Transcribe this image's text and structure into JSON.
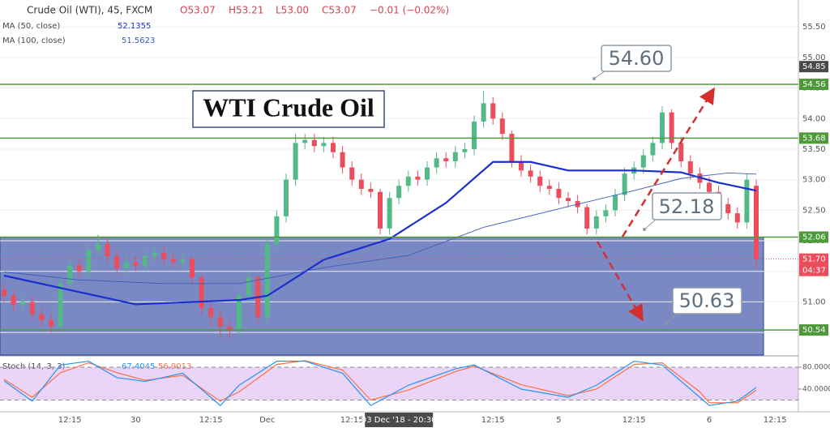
{
  "chart_data": {
    "type": "candlestick",
    "title": "Crude Oil (WTI), 45, FXCM",
    "ohlc_legend": [
      "O53.07",
      "H53.21",
      "L53.00",
      "C53.07",
      "−0.01 (−0.02%)"
    ],
    "categories": [
      null,
      null,
      null,
      null,
      null,
      null,
      null,
      "12:15",
      null,
      null,
      null,
      null,
      null,
      null,
      "30",
      null,
      null,
      null,
      null,
      null,
      null,
      null,
      "12:15",
      null,
      null,
      null,
      null,
      null,
      "Dec",
      null,
      null,
      null,
      null,
      null,
      null,
      null,
      null,
      "12:15",
      null,
      null,
      null,
      null,
      "03 Dec '18 - 20:30",
      null,
      null,
      null,
      null,
      null,
      null,
      null,
      null,
      null,
      "12:15",
      null,
      null,
      null,
      null,
      null,
      null,
      "5",
      null,
      null,
      null,
      null,
      null,
      null,
      null,
      "12:15",
      null,
      null,
      null,
      null,
      null,
      null,
      null,
      "6",
      null,
      null,
      null,
      null,
      null,
      null,
      "12:15",
      null
    ],
    "open": [
      51.2,
      51.1,
      50.95,
      51.0,
      50.8,
      50.7,
      50.6,
      51.3,
      51.6,
      51.5,
      51.85,
      51.95,
      51.75,
      51.55,
      51.65,
      51.6,
      51.75,
      51.8,
      51.7,
      51.65,
      51.7,
      51.4,
      50.9,
      50.75,
      50.6,
      50.55,
      51.1,
      51.4,
      50.75,
      51.95,
      52.4,
      53.0,
      53.6,
      53.65,
      53.55,
      53.6,
      53.45,
      53.2,
      53.0,
      52.85,
      52.8,
      52.2,
      52.7,
      52.9,
      53.05,
      53.0,
      53.2,
      53.35,
      53.3,
      53.45,
      53.5,
      53.95,
      54.25,
      54.0,
      53.75,
      53.3,
      53.15,
      53.05,
      52.9,
      52.85,
      52.7,
      52.65,
      52.55,
      52.2,
      52.4,
      52.5,
      52.75,
      53.1,
      53.2,
      53.4,
      53.6,
      54.1,
      53.6,
      53.3,
      53.1,
      52.95,
      52.8,
      52.6,
      52.45,
      52.3,
      52.9,
      null,
      null,
      null
    ],
    "high": [
      51.3,
      51.2,
      51.1,
      51.1,
      50.9,
      50.8,
      51.4,
      51.7,
      51.7,
      51.95,
      52.1,
      52.05,
      51.85,
      51.75,
      51.75,
      51.85,
      51.9,
      51.9,
      51.8,
      51.8,
      51.75,
      51.45,
      51.0,
      50.85,
      50.7,
      51.2,
      51.5,
      51.45,
      52.05,
      52.5,
      53.1,
      53.75,
      53.75,
      53.75,
      53.7,
      53.7,
      53.55,
      53.3,
      53.1,
      52.95,
      52.85,
      52.8,
      53.0,
      53.15,
      53.15,
      53.3,
      53.45,
      53.45,
      53.55,
      53.6,
      54.05,
      54.45,
      54.35,
      54.1,
      53.8,
      53.4,
      53.25,
      53.15,
      53.0,
      52.95,
      52.8,
      52.75,
      52.6,
      52.5,
      52.6,
      52.85,
      53.2,
      53.3,
      53.5,
      53.7,
      54.2,
      54.15,
      53.7,
      53.4,
      53.2,
      53.05,
      52.9,
      52.7,
      52.55,
      53.1,
      53.0,
      null,
      null,
      null
    ],
    "low": [
      51.0,
      50.85,
      50.85,
      50.7,
      50.6,
      50.5,
      50.5,
      51.2,
      51.4,
      51.4,
      51.75,
      51.65,
      51.45,
      51.45,
      51.5,
      51.5,
      51.65,
      51.6,
      51.55,
      51.55,
      51.3,
      50.8,
      50.6,
      50.45,
      50.4,
      50.45,
      51.0,
      50.65,
      50.65,
      51.85,
      52.3,
      52.9,
      53.5,
      53.45,
      53.45,
      53.35,
      53.1,
      52.9,
      52.75,
      52.7,
      52.1,
      52.1,
      52.6,
      52.8,
      52.9,
      52.9,
      53.1,
      53.2,
      53.2,
      53.35,
      53.4,
      53.85,
      53.9,
      53.65,
      53.2,
      53.05,
      52.95,
      52.8,
      52.75,
      52.6,
      52.55,
      52.45,
      52.1,
      52.1,
      52.3,
      52.4,
      52.65,
      53.0,
      53.1,
      53.3,
      53.5,
      53.5,
      53.2,
      53.0,
      52.85,
      52.7,
      52.5,
      52.35,
      52.2,
      52.2,
      51.55,
      null,
      null,
      null
    ],
    "close": [
      51.1,
      50.95,
      51.0,
      50.8,
      50.7,
      50.6,
      51.3,
      51.6,
      51.5,
      51.85,
      51.95,
      51.75,
      51.55,
      51.65,
      51.6,
      51.75,
      51.8,
      51.7,
      51.65,
      51.7,
      51.4,
      50.9,
      50.75,
      50.6,
      50.55,
      51.1,
      51.4,
      50.75,
      51.95,
      52.4,
      53.0,
      53.6,
      53.65,
      53.55,
      53.6,
      53.45,
      53.2,
      53.0,
      52.85,
      52.8,
      52.2,
      52.7,
      52.9,
      53.05,
      53.0,
      53.2,
      53.35,
      53.3,
      53.45,
      53.5,
      53.95,
      54.25,
      54.0,
      53.75,
      53.3,
      53.15,
      53.05,
      52.9,
      52.85,
      52.7,
      52.65,
      52.55,
      52.2,
      52.4,
      52.5,
      52.75,
      53.1,
      53.2,
      53.4,
      53.6,
      54.1,
      53.6,
      53.3,
      53.1,
      52.95,
      52.8,
      52.6,
      52.45,
      52.3,
      53.0,
      51.7,
      null,
      null,
      null
    ],
    "up_color": "#53b987",
    "down_color": "#eb4d5c",
    "ylim": [
      50.13,
      55.94
    ],
    "yticks": [
      {
        "value": 50.5,
        "label": "50.50"
      },
      {
        "value": 51,
        "label": "51.00"
      },
      {
        "value": 51.5,
        "label": "51.50"
      },
      {
        "value": 52,
        "label": "52.00"
      },
      {
        "value": 52.5,
        "label": "52.50"
      },
      {
        "value": 53,
        "label": "53.00"
      },
      {
        "value": 53.5,
        "label": "53.50"
      },
      {
        "value": 54,
        "label": "54.00"
      },
      {
        "value": 54.5,
        "label": "54.50"
      },
      {
        "value": 55,
        "label": "55.00"
      },
      {
        "value": 55.5,
        "label": "55.50"
      }
    ],
    "grid": true,
    "series": [
      {
        "name": "MA (50, close)",
        "value_label": "52.1355",
        "color": "#1a2fd0",
        "width": 2.2,
        "x": [
          0,
          8,
          14,
          25,
          28,
          34,
          41,
          47,
          52,
          56,
          60,
          67,
          72,
          76,
          80
        ],
        "values": [
          51.43,
          51.16,
          50.96,
          51.03,
          51.1,
          51.69,
          52.03,
          52.62,
          53.29,
          53.29,
          53.15,
          53.15,
          53.12,
          52.95,
          52.82
        ]
      },
      {
        "name": "MA (100, close)",
        "value_label": "51.5623",
        "color": "#3b5bbd",
        "width": 0.9,
        "x": [
          0,
          8,
          17,
          25,
          34,
          43,
          51,
          60,
          67,
          72,
          77,
          80
        ],
        "values": [
          51.49,
          51.36,
          51.3,
          51.3,
          51.56,
          51.76,
          52.22,
          52.56,
          52.82,
          53.02,
          53.11,
          53.09
        ]
      }
    ],
    "levels": [
      {
        "value": 54.56,
        "label": "54.56"
      },
      {
        "value": 53.68,
        "label": "53.68"
      },
      {
        "value": 52.06,
        "label": "52.06"
      },
      {
        "value": 50.54,
        "label": "50.54"
      }
    ],
    "level_color": "#4e9a3a",
    "crosshair_price": {
      "value": 54.85,
      "label": "54.85"
    },
    "last_price": {
      "value": 51.7,
      "label": "51.70",
      "countdown": "04:37"
    },
    "annotations": [
      "WTI Crude Oil",
      "54.60",
      "52.18",
      "50.63"
    ],
    "stoch": {
      "name": "Stoch (14, 3, 3)",
      "ylim": [
        0,
        100
      ],
      "yticks": [
        {
          "value": 80,
          "label": "80.0000"
        },
        {
          "value": 40,
          "label": "40.0000"
        }
      ],
      "band": [
        20,
        80
      ],
      "k": {
        "value_label": "67.4045",
        "color": "#2196f3",
        "x": [
          0,
          3,
          6,
          9,
          12,
          15,
          19,
          23,
          25,
          29,
          32,
          36,
          39,
          43,
          48,
          50,
          55,
          60,
          63,
          67,
          70,
          74,
          75,
          78,
          80
        ],
        "values": [
          55,
          18,
          84,
          91,
          61,
          54,
          69,
          10,
          47,
          91,
          91,
          69,
          10,
          47,
          77,
          84,
          40,
          25,
          47,
          91,
          84,
          25,
          10,
          18,
          43
        ]
      },
      "d": {
        "value_label": "56.9013",
        "color": "#ff7043",
        "x": [
          0,
          3,
          6,
          9,
          12,
          15,
          19,
          23,
          25,
          29,
          32,
          36,
          39,
          43,
          48,
          50,
          55,
          60,
          63,
          67,
          70,
          74,
          75,
          78,
          80
        ],
        "values": [
          58,
          25,
          70,
          88,
          70,
          56,
          65,
          18,
          35,
          85,
          92,
          75,
          20,
          38,
          72,
          82,
          48,
          28,
          40,
          85,
          88,
          35,
          15,
          15,
          38
        ]
      }
    }
  }
}
